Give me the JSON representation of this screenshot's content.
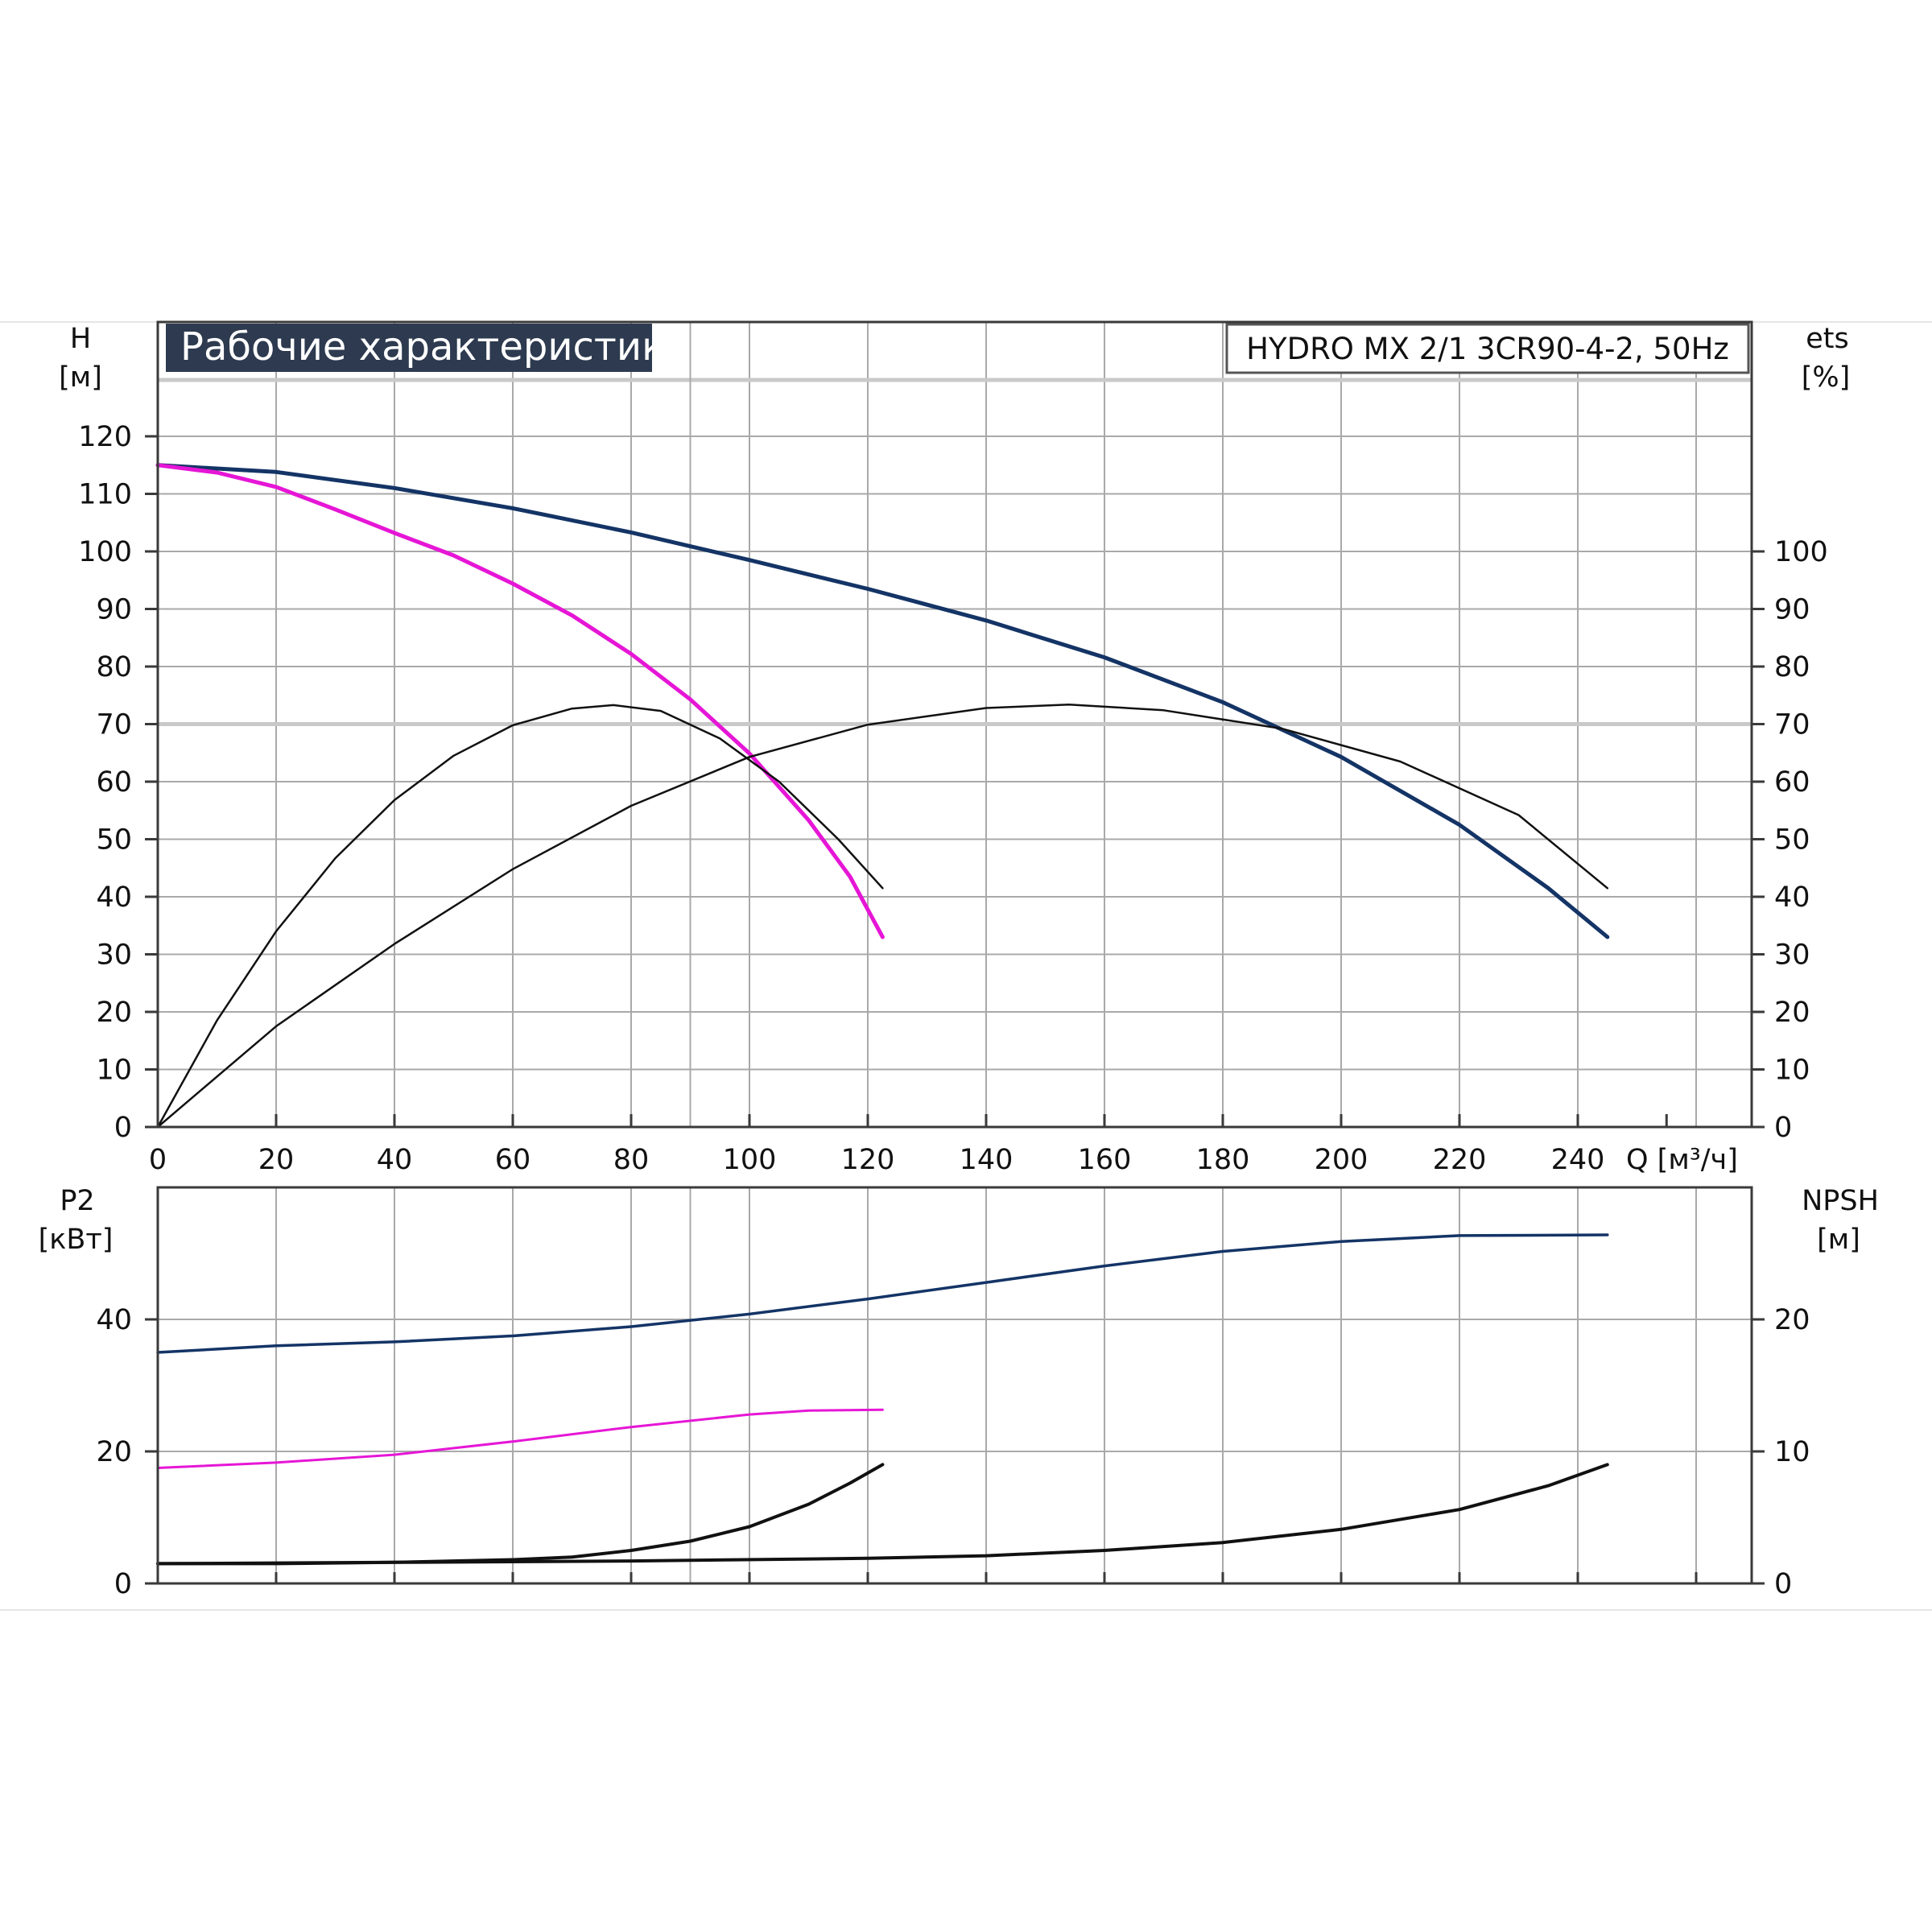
{
  "colors": {
    "head_blue": "#143466",
    "head_magenta": "#e616d6",
    "curve_black": "#111111",
    "title_bg": "#2d3a4f",
    "grid": "#a9a9a9",
    "band": "#cfcfcf"
  },
  "chart_data": [
    {
      "type": "line",
      "title": "Рабочие характеристики",
      "subtitle": "HYDRO MX 2/1 3CR90-4-2, 50Hz",
      "xlabel": "Q [м³/ч]",
      "ylabel": "H",
      "ylabel_unit": "[м]",
      "y2label": "ets",
      "y2label_unit": "[%]",
      "xlim": [
        0,
        270
      ],
      "ylim": [
        0,
        120
      ],
      "y2lim": [
        0,
        120
      ],
      "x_ticks": [
        "0",
        "20",
        "40",
        "60",
        "80",
        "100",
        "120",
        "140",
        "160",
        "180",
        "200",
        "220",
        "240"
      ],
      "y_ticks": [
        "0",
        "10",
        "20",
        "30",
        "40",
        "50",
        "60",
        "70",
        "80",
        "90",
        "100",
        "110",
        "120"
      ],
      "y2_ticks": [
        "0",
        "10",
        "20",
        "30",
        "40",
        "50",
        "60",
        "70",
        "80",
        "90",
        "100"
      ],
      "grid": true,
      "series": [
        {
          "color": "#143466",
          "axis": "y",
          "points": [
            [
              0,
              115
            ],
            [
              20,
              113.8
            ],
            [
              40,
              111
            ],
            [
              60,
              107.5
            ],
            [
              80,
              103.3
            ],
            [
              100,
              98.5
            ],
            [
              120,
              93.5
            ],
            [
              140,
              88
            ],
            [
              160,
              81.6
            ],
            [
              180,
              73.8
            ],
            [
              200,
              64.3
            ],
            [
              220,
              52.5
            ],
            [
              235,
              41.5
            ],
            [
              245,
              33
            ]
          ]
        },
        {
          "color": "#e616d6",
          "axis": "y",
          "points": [
            [
              0,
              115
            ],
            [
              10,
              113.7
            ],
            [
              20,
              111.2
            ],
            [
              30,
              107.3
            ],
            [
              40,
              103.2
            ],
            [
              50,
              99.3
            ],
            [
              60,
              94.4
            ],
            [
              70,
              88.9
            ],
            [
              80,
              82.2
            ],
            [
              90,
              74.3
            ],
            [
              100,
              64.9
            ],
            [
              110,
              53.3
            ],
            [
              117,
              43.5
            ],
            [
              122.5,
              33
            ]
          ]
        },
        {
          "color": "#111111",
          "axis": "y2",
          "points": [
            [
              0,
              0
            ],
            [
              10,
              18.5
            ],
            [
              20,
              34
            ],
            [
              30,
              46.7
            ],
            [
              40,
              56.8
            ],
            [
              50,
              64.5
            ],
            [
              60,
              69.8
            ],
            [
              70,
              72.7
            ],
            [
              77,
              73.3
            ],
            [
              85,
              72.3
            ],
            [
              95,
              67.5
            ],
            [
              105,
              60
            ],
            [
              115,
              50
            ],
            [
              122.5,
              41.5
            ]
          ]
        },
        {
          "color": "#111111",
          "axis": "y2",
          "points": [
            [
              0,
              0
            ],
            [
              20,
              17.5
            ],
            [
              40,
              31.8
            ],
            [
              60,
              44.8
            ],
            [
              80,
              55.8
            ],
            [
              100,
              64.3
            ],
            [
              120,
              69.9
            ],
            [
              140,
              72.8
            ],
            [
              154,
              73.4
            ],
            [
              170,
              72.4
            ],
            [
              190,
              69.2
            ],
            [
              210,
              63.5
            ],
            [
              230,
              54.2
            ],
            [
              245,
              41.5
            ]
          ]
        }
      ]
    },
    {
      "type": "line",
      "ylabel": "P2",
      "ylabel_unit": "[кВт]",
      "y2label": "NPSH",
      "y2label_unit": "[м]",
      "xlim": [
        0,
        270
      ],
      "ylim": [
        0,
        60
      ],
      "y2lim": [
        0,
        30
      ],
      "y_ticks": [
        "0",
        "20",
        "40"
      ],
      "y2_ticks": [
        "0",
        "10",
        "20"
      ],
      "grid": true,
      "series": [
        {
          "color": "#143466",
          "axis": "y",
          "points": [
            [
              0,
              35
            ],
            [
              20,
              36
            ],
            [
              40,
              36.6
            ],
            [
              60,
              37.5
            ],
            [
              80,
              38.9
            ],
            [
              100,
              40.8
            ],
            [
              120,
              43.1
            ],
            [
              140,
              45.6
            ],
            [
              160,
              48.1
            ],
            [
              180,
              50.3
            ],
            [
              200,
              51.8
            ],
            [
              220,
              52.7
            ],
            [
              245,
              52.8
            ]
          ]
        },
        {
          "color": "#e616d6",
          "axis": "y",
          "points": [
            [
              0,
              17.5
            ],
            [
              20,
              18.3
            ],
            [
              40,
              19.5
            ],
            [
              60,
              21.5
            ],
            [
              80,
              23.7
            ],
            [
              100,
              25.6
            ],
            [
              110,
              26.2
            ],
            [
              122.5,
              26.3
            ]
          ]
        },
        {
          "color": "#111111",
          "axis": "y2",
          "points": [
            [
              0,
              1.5
            ],
            [
              20,
              1.5
            ],
            [
              40,
              1.6
            ],
            [
              60,
              1.8
            ],
            [
              70,
              2
            ],
            [
              80,
              2.5
            ],
            [
              90,
              3.2
            ],
            [
              100,
              4.3
            ],
            [
              110,
              6
            ],
            [
              117,
              7.6
            ],
            [
              122.5,
              9
            ]
          ]
        },
        {
          "color": "#111111",
          "axis": "y2",
          "points": [
            [
              0,
              1.5
            ],
            [
              40,
              1.6
            ],
            [
              80,
              1.7
            ],
            [
              120,
              1.9
            ],
            [
              140,
              2.1
            ],
            [
              160,
              2.5
            ],
            [
              180,
              3.1
            ],
            [
              200,
              4.1
            ],
            [
              220,
              5.6
            ],
            [
              235,
              7.4
            ],
            [
              245,
              9
            ]
          ]
        }
      ]
    }
  ]
}
